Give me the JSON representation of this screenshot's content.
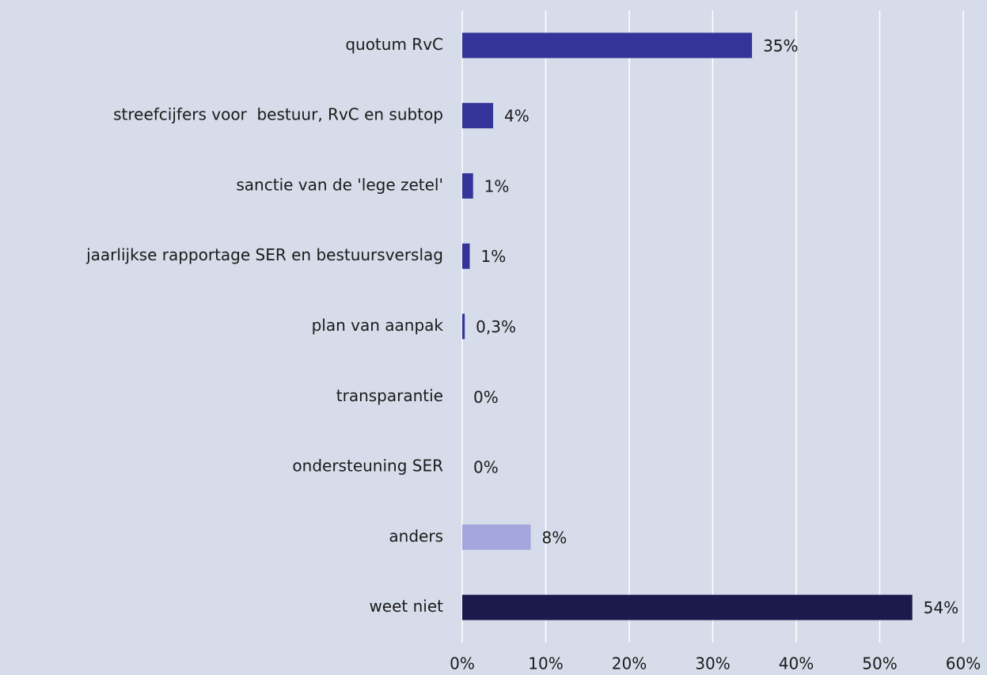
{
  "chart_data": {
    "type": "barh",
    "categories": [
      "quotum RvC",
      "streefcijfers voor  bestuur, RvC en subtop",
      "sanctie van de 'lege zetel'",
      "jaarlijkse rapportage SER en bestuursverslag",
      "plan van aanpak",
      "transparantie",
      "ondersteuning SER",
      "anders",
      "weet niet"
    ],
    "values": [
      34.7,
      3.7,
      1.3,
      0.9,
      0.3,
      0,
      0,
      8.2,
      53.9
    ],
    "value_labels": [
      "35%",
      "4%",
      "1%",
      "1%",
      "0,3%",
      "0%",
      "0%",
      "8%",
      "54%"
    ],
    "colors": [
      "#333399",
      "#333399",
      "#333399",
      "#333399",
      "#333399",
      "#333399",
      "#333399",
      "#a6a6de",
      "#1a1a4d"
    ],
    "xlim": [
      0,
      60
    ],
    "xticks": [
      {
        "value": 0,
        "label": "0%"
      },
      {
        "value": 10,
        "label": "10%"
      },
      {
        "value": 20,
        "label": "20%"
      },
      {
        "value": 30,
        "label": "30%"
      },
      {
        "value": 40,
        "label": "40%"
      },
      {
        "value": 50,
        "label": "50%"
      },
      {
        "value": 60,
        "label": "60%"
      }
    ],
    "grid": true
  }
}
